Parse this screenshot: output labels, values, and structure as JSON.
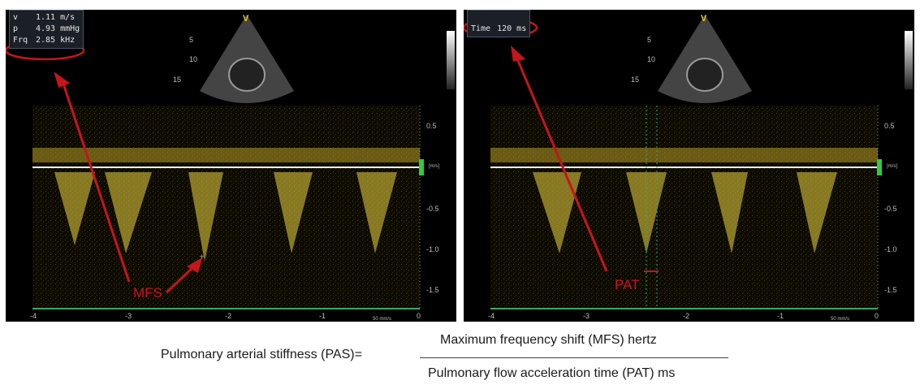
{
  "left_panel": {
    "measurements": [
      {
        "label": "v",
        "value": "1.11 m/s"
      },
      {
        "label": "p",
        "value": "4.93 mmHg"
      },
      {
        "label": "Frq",
        "value": "2.85 kHz"
      }
    ],
    "annotation": "MFS"
  },
  "right_panel": {
    "measurements": [
      {
        "label": "Time",
        "value": "120 ms"
      }
    ],
    "annotation": "PAT"
  },
  "axis": {
    "velocity_ticks": [
      "0.5",
      "-0.5",
      "-1.0",
      "-1.5"
    ],
    "velocity_unit": "[m/s]",
    "time_ticks": [
      "-4",
      "-3",
      "-2",
      "-1",
      "0"
    ],
    "sweep_speed": "50 mm/s",
    "sector_depth_ticks": [
      "5",
      "10",
      "15"
    ]
  },
  "formula": {
    "lhs": "Pulmonary arterial stiffness (PAS)=",
    "numerator": "Maximum frequency shift (MFS) hertz",
    "denominator": "Pulmonary flow acceleration time (PAT) ms"
  },
  "colors": {
    "doppler": "#d8c23a",
    "annotation_red": "#c5151d",
    "velocity_marker": "#2ecc40",
    "time_axis": "#3aa86b"
  }
}
